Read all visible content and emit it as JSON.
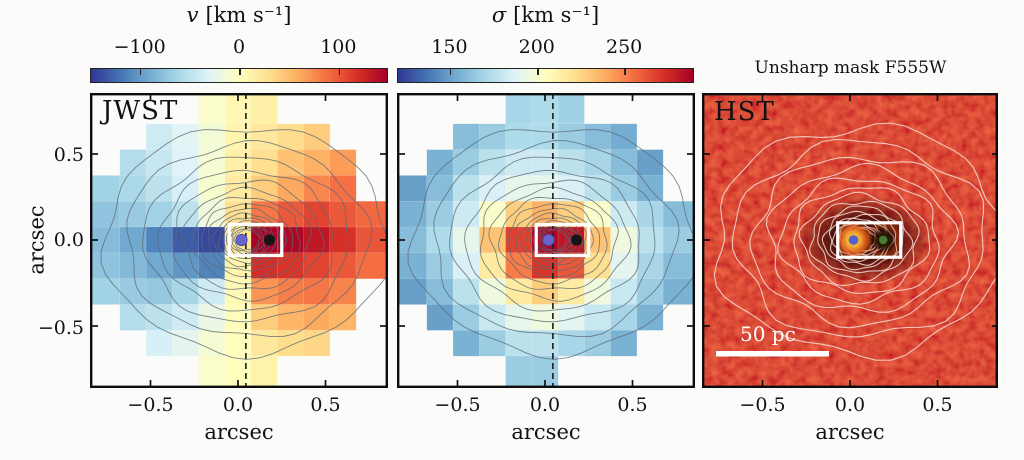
{
  "figure": {
    "description": "Three-panel galaxy nucleus figure: JWST stellar velocity map, JWST velocity dispersion map, HST unsharp-masked image",
    "background": "#fbfcfa"
  },
  "colormap": {
    "name": "RdYlBu_r",
    "stops": [
      "#313695",
      "#4575b4",
      "#74add1",
      "#abd9e9",
      "#e0f3f8",
      "#ffffbf",
      "#fee090",
      "#fdae61",
      "#f46d43",
      "#d73027",
      "#a50026"
    ]
  },
  "colors": {
    "contour_gray": "#5b6a75",
    "contour_white": "#f6ded6",
    "hst_red_base": "#d21507",
    "box_white": "#ffffff",
    "dot_blue": "#6766cf",
    "dot_black": "#161616",
    "nucleus_blue_core": "#5560d0",
    "nucleus_orange_ring": "#f0a windows830",
    "nucleus_green_core": "#4a7a3a"
  },
  "colorbars": [
    {
      "title_var": "v",
      "title_unit": "[km s⁻¹]",
      "range": [
        -150,
        150
      ],
      "ticks": [
        {
          "value": -100,
          "label": "−100"
        },
        {
          "value": 0,
          "label": "0"
        },
        {
          "value": 100,
          "label": "100"
        }
      ]
    },
    {
      "title_var": "σ",
      "title_unit": "[km s⁻¹]",
      "range": [
        120,
        290
      ],
      "ticks": [
        {
          "value": 150,
          "label": "150"
        },
        {
          "value": 200,
          "label": "200"
        },
        {
          "value": 250,
          "label": "250"
        }
      ]
    }
  ],
  "axes": {
    "x_label": "arcsec",
    "y_label": "arcsec",
    "x_ticks": [
      {
        "value": -0.5,
        "label": "−0.5"
      },
      {
        "value": 0.0,
        "label": "0.0"
      },
      {
        "value": 0.5,
        "label": "0.5"
      }
    ],
    "y_ticks": [
      {
        "value": 0.5,
        "label": "0.5"
      },
      {
        "value": 0.0,
        "label": "0.0"
      },
      {
        "value": -0.5,
        "label": "−0.5"
      }
    ]
  },
  "panels": [
    {
      "id": "jwst-velocity",
      "label": "JWST"
    },
    {
      "id": "jwst-sigma",
      "label": ""
    },
    {
      "id": "hst",
      "label": "HST",
      "title": "Unsharp mask F555W",
      "scalebar": "50 pc"
    }
  ],
  "chart_data": [
    {
      "type": "heatmap",
      "title": "JWST stellar velocity map",
      "quantity": "v",
      "units": "km s⁻¹",
      "vrange": [
        -150,
        150
      ],
      "x_arcsec": [
        -0.75,
        -0.6,
        -0.45,
        -0.3,
        -0.15,
        0,
        0.15,
        0.3,
        0.45,
        0.6,
        0.75
      ],
      "y_arcsec": [
        0.75,
        0.6,
        0.45,
        0.3,
        0.15,
        0,
        -0.15,
        -0.3,
        -0.45,
        -0.6,
        -0.75
      ],
      "values": [
        [
          null,
          null,
          null,
          null,
          -5,
          8,
          15,
          null,
          null,
          null,
          null
        ],
        [
          null,
          null,
          -40,
          -28,
          -12,
          10,
          22,
          32,
          42,
          null,
          null
        ],
        [
          null,
          -55,
          -45,
          -30,
          -10,
          15,
          30,
          48,
          58,
          68,
          null
        ],
        [
          -65,
          -60,
          -50,
          -35,
          -8,
          20,
          42,
          62,
          78,
          88,
          null
        ],
        [
          -75,
          -70,
          -65,
          -50,
          -15,
          30,
          85,
          100,
          110,
          100,
          92
        ],
        [
          -80,
          -92,
          -112,
          -132,
          -142,
          25,
          148,
          145,
          135,
          120,
          102
        ],
        [
          -75,
          -82,
          -92,
          -102,
          -112,
          12,
          122,
          118,
          110,
          100,
          90
        ],
        [
          -65,
          -70,
          -72,
          -62,
          -40,
          6,
          72,
          82,
          86,
          80,
          null
        ],
        [
          null,
          -55,
          -50,
          -40,
          -20,
          2,
          42,
          56,
          62,
          56,
          null
        ],
        [
          null,
          null,
          -35,
          -25,
          -10,
          2,
          22,
          32,
          36,
          null,
          null
        ],
        [
          null,
          null,
          null,
          null,
          -6,
          2,
          12,
          null,
          null,
          null,
          null
        ]
      ],
      "annotations": {
        "dashed_line_x_arcsec": 0.045,
        "white_box_arcsec": {
          "x": [
            -0.05,
            0.25
          ],
          "y": [
            -0.09,
            0.09
          ]
        },
        "nuclei": [
          {
            "x": 0.02,
            "y": 0.0,
            "marker": "blue-dot"
          },
          {
            "x": 0.18,
            "y": 0.0,
            "marker": "black-dot"
          }
        ]
      }
    },
    {
      "type": "heatmap",
      "title": "JWST stellar velocity dispersion map",
      "quantity": "σ",
      "units": "km s⁻¹",
      "vrange": [
        120,
        290
      ],
      "x_arcsec": [
        -0.75,
        -0.6,
        -0.45,
        -0.3,
        -0.15,
        0,
        0.15,
        0.3,
        0.45,
        0.6,
        0.75
      ],
      "y_arcsec": [
        0.75,
        0.6,
        0.45,
        0.3,
        0.15,
        0,
        -0.15,
        -0.3,
        -0.45,
        -0.6,
        -0.75
      ],
      "values": [
        [
          null,
          null,
          null,
          null,
          170,
          172,
          168,
          null,
          null,
          null,
          null
        ],
        [
          null,
          null,
          160,
          166,
          172,
          172,
          166,
          160,
          154,
          null,
          null
        ],
        [
          null,
          156,
          166,
          176,
          182,
          182,
          176,
          170,
          160,
          150,
          null
        ],
        [
          150,
          160,
          176,
          186,
          192,
          192,
          186,
          176,
          166,
          156,
          null
        ],
        [
          156,
          166,
          182,
          202,
          228,
          238,
          228,
          202,
          182,
          170,
          160
        ],
        [
          160,
          172,
          192,
          232,
          268,
          288,
          282,
          232,
          196,
          176,
          166
        ],
        [
          156,
          166,
          186,
          216,
          252,
          272,
          262,
          222,
          190,
          170,
          160
        ],
        [
          150,
          160,
          176,
          196,
          216,
          228,
          216,
          196,
          180,
          166,
          156
        ],
        [
          null,
          150,
          166,
          180,
          192,
          196,
          190,
          180,
          170,
          156,
          null
        ],
        [
          null,
          null,
          156,
          166,
          176,
          176,
          170,
          166,
          156,
          null,
          null
        ],
        [
          null,
          null,
          null,
          null,
          166,
          166,
          null,
          null,
          null,
          null,
          null
        ]
      ],
      "annotations": {
        "dashed_line_x_arcsec": 0.045,
        "white_box_arcsec": {
          "x": [
            -0.05,
            0.25
          ],
          "y": [
            -0.09,
            0.09
          ]
        },
        "nuclei": [
          {
            "x": 0.02,
            "y": 0.0,
            "marker": "blue-dot"
          },
          {
            "x": 0.18,
            "y": 0.0,
            "marker": "black-dot"
          }
        ]
      }
    },
    {
      "type": "image",
      "title": "Unsharp mask F555W",
      "telescope": "HST",
      "description": "Red unsharp-masked HST F555W image with white isophote contours and a double nucleus inside a white box",
      "scalebar_label": "50 pc",
      "annotations": {
        "white_box_arcsec": {
          "x": [
            -0.07,
            0.29
          ],
          "y": [
            -0.1,
            0.1
          ]
        },
        "nuclei": [
          {
            "x": 0.02,
            "y": 0.0,
            "marker": "orange-ring-blue-core"
          },
          {
            "x": 0.19,
            "y": 0.0,
            "marker": "dark-ring-green-core"
          }
        ]
      }
    }
  ]
}
